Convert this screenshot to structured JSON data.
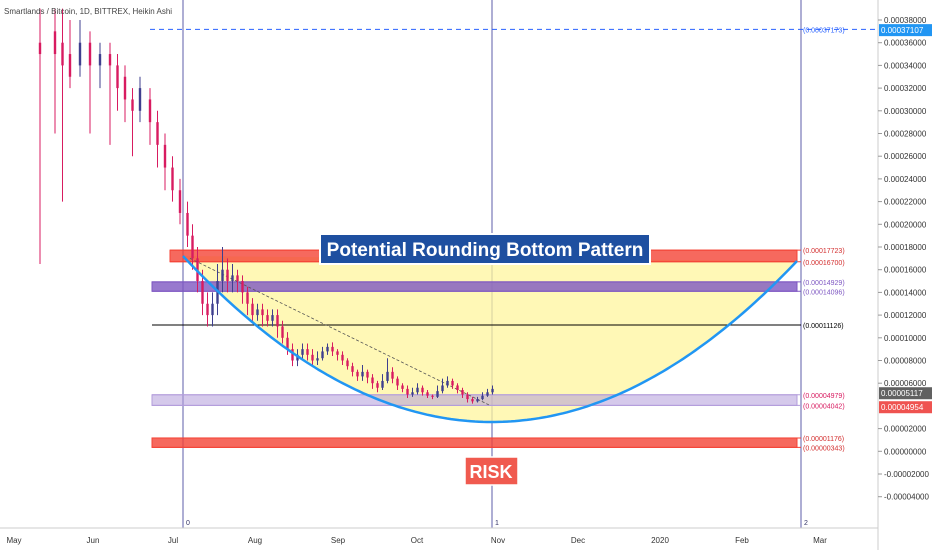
{
  "header": {
    "title": "Smartlands / Bitcoin, 1D, BITTREX, Heikin Ashi"
  },
  "chart_data": {
    "type": "candlestick",
    "title": "Smartlands / Bitcoin, 1D, BITTREX, Heikin Ashi",
    "ylim": [
      -4.6e-05,
      0.00039
    ],
    "y_ticks": [
      {
        "v": 0.00038,
        "label": "0.00038000"
      },
      {
        "v": 0.00036,
        "label": "0.00036000"
      },
      {
        "v": 0.00034,
        "label": "0.00034000"
      },
      {
        "v": 0.00032,
        "label": "0.00032000"
      },
      {
        "v": 0.0003,
        "label": "0.00030000"
      },
      {
        "v": 0.00028,
        "label": "0.00028000"
      },
      {
        "v": 0.00026,
        "label": "0.00026000"
      },
      {
        "v": 0.00024,
        "label": "0.00024000"
      },
      {
        "v": 0.00022,
        "label": "0.00022000"
      },
      {
        "v": 0.0002,
        "label": "0.00020000"
      },
      {
        "v": 0.00018,
        "label": "0.00018000"
      },
      {
        "v": 0.00016,
        "label": "0.00016000"
      },
      {
        "v": 0.00014,
        "label": "0.00014000"
      },
      {
        "v": 0.00012,
        "label": "0.00012000"
      },
      {
        "v": 0.0001,
        "label": "0.00010000"
      },
      {
        "v": 8e-05,
        "label": "0.00008000"
      },
      {
        "v": 6e-05,
        "label": "0.00006000"
      },
      {
        "v": 2e-05,
        "label": "0.00002000"
      },
      {
        "v": 0.0,
        "label": "0.00000000"
      },
      {
        "v": -2e-05,
        "label": "-0.00002000"
      },
      {
        "v": -4e-05,
        "label": "-0.00004000"
      }
    ],
    "x_ticks": [
      "May",
      "Jun",
      "Jul",
      "Aug",
      "Sep",
      "Oct",
      "Nov",
      "Dec",
      "2020",
      "Feb",
      "Mar"
    ],
    "price_badges": [
      {
        "label": "0.00037107",
        "v": 0.00037107,
        "color": "#2196f3"
      },
      {
        "label": "0.00005117",
        "v": 5.117e-05,
        "color": "#616161"
      },
      {
        "label": "0.00004954",
        "v": 4.954e-05,
        "color": "#ef5350"
      }
    ],
    "zones": [
      {
        "name": "resistance-1",
        "top": 0.00017723,
        "bottom": 0.000167,
        "color": "#f44336",
        "labels": [
          "(0.00017723)",
          "(0.00016700)"
        ],
        "label_color": "#d32f2f"
      },
      {
        "name": "resistance-2",
        "top": 0.00014929,
        "bottom": 0.00014096,
        "color": "#7e57c2",
        "labels": [
          "(0.00014929)",
          "(0.00014096)"
        ],
        "label_color": "#7e57c2"
      },
      {
        "name": "support",
        "top": 4.979e-05,
        "bottom": 4.042e-05,
        "color": "#b39ddb",
        "labels": [
          "(0.00004979)",
          "(0.00004042)"
        ],
        "label_color": "#d81b60"
      },
      {
        "name": "risk",
        "top": 1.176e-05,
        "bottom": 3.43e-06,
        "color": "#f44336",
        "labels": [
          "(0.00001176)",
          "(0.00000343)"
        ],
        "label_color": "#d32f2f"
      }
    ],
    "levels": [
      {
        "name": "level-0.00011126",
        "v": 0.00011126,
        "label": "(0.00011126)",
        "color": "#000000"
      },
      {
        "name": "level-0.00037173",
        "v": 0.00037173,
        "label": "(0.00037173)",
        "color": "#2962ff",
        "dashed": true
      }
    ],
    "vertical_markers": [
      "0",
      "1",
      "2"
    ],
    "annotations": [
      {
        "name": "pattern-title",
        "text": "Potential Rounding Bottom Pattern"
      },
      {
        "name": "risk-label",
        "text": "RISK"
      }
    ],
    "series": [
      {
        "name": "heikin-ashi",
        "points": [
          {
            "d": 0,
            "o": 0.00036,
            "c": 0.00035,
            "h": 0.00039,
            "l": 0.000165
          },
          {
            "d": 6,
            "o": 0.00037,
            "c": 0.00035,
            "h": 0.00039,
            "l": 0.00028
          },
          {
            "d": 9,
            "o": 0.00036,
            "c": 0.00034,
            "h": 0.00039,
            "l": 0.00022
          },
          {
            "d": 12,
            "o": 0.00035,
            "c": 0.00033,
            "h": 0.00038,
            "l": 0.00032
          },
          {
            "d": 16,
            "o": 0.00034,
            "c": 0.00036,
            "h": 0.00038,
            "l": 0.00033
          },
          {
            "d": 20,
            "o": 0.00036,
            "c": 0.00034,
            "h": 0.00037,
            "l": 0.00028
          },
          {
            "d": 24,
            "o": 0.00034,
            "c": 0.00035,
            "h": 0.00036,
            "l": 0.00032
          },
          {
            "d": 28,
            "o": 0.00035,
            "c": 0.00034,
            "h": 0.00036,
            "l": 0.00027
          },
          {
            "d": 31,
            "o": 0.00034,
            "c": 0.00032,
            "h": 0.00035,
            "l": 0.0003
          },
          {
            "d": 34,
            "o": 0.00033,
            "c": 0.00031,
            "h": 0.00034,
            "l": 0.00029
          },
          {
            "d": 37,
            "o": 0.00031,
            "c": 0.0003,
            "h": 0.00032,
            "l": 0.00026
          },
          {
            "d": 40,
            "o": 0.0003,
            "c": 0.00032,
            "h": 0.00033,
            "l": 0.00029
          },
          {
            "d": 44,
            "o": 0.00031,
            "c": 0.00029,
            "h": 0.00032,
            "l": 0.00027
          },
          {
            "d": 47,
            "o": 0.00029,
            "c": 0.00027,
            "h": 0.0003,
            "l": 0.00025
          },
          {
            "d": 50,
            "o": 0.00027,
            "c": 0.00025,
            "h": 0.00028,
            "l": 0.00023
          },
          {
            "d": 53,
            "o": 0.00025,
            "c": 0.00023,
            "h": 0.00026,
            "l": 0.00022
          },
          {
            "d": 56,
            "o": 0.00023,
            "c": 0.00021,
            "h": 0.00024,
            "l": 0.0002
          },
          {
            "d": 59,
            "o": 0.00021,
            "c": 0.00019,
            "h": 0.00022,
            "l": 0.00018
          },
          {
            "d": 61,
            "o": 0.00019,
            "c": 0.00017,
            "h": 0.0002,
            "l": 0.00016
          },
          {
            "d": 63,
            "o": 0.00017,
            "c": 0.00015,
            "h": 0.00018,
            "l": 0.00014
          },
          {
            "d": 65,
            "o": 0.00015,
            "c": 0.00013,
            "h": 0.00016,
            "l": 0.00012
          },
          {
            "d": 67,
            "o": 0.00013,
            "c": 0.00012,
            "h": 0.00014,
            "l": 0.00011
          },
          {
            "d": 69,
            "o": 0.00012,
            "c": 0.00013,
            "h": 0.00014,
            "l": 0.00011
          },
          {
            "d": 71,
            "o": 0.00013,
            "c": 0.00015,
            "h": 0.000165,
            "l": 0.00012
          },
          {
            "d": 73,
            "o": 0.00015,
            "c": 0.00016,
            "h": 0.00018,
            "l": 0.00014
          },
          {
            "d": 75,
            "o": 0.00016,
            "c": 0.00015,
            "h": 0.00017,
            "l": 0.00014
          },
          {
            "d": 77,
            "o": 0.00015,
            "c": 0.000155,
            "h": 0.000165,
            "l": 0.00014
          },
          {
            "d": 79,
            "o": 0.000155,
            "c": 0.00015,
            "h": 0.00016,
            "l": 0.00014
          },
          {
            "d": 81,
            "o": 0.00015,
            "c": 0.00014,
            "h": 0.000155,
            "l": 0.00013
          },
          {
            "d": 83,
            "o": 0.00014,
            "c": 0.00013,
            "h": 0.000145,
            "l": 0.00012
          },
          {
            "d": 85,
            "o": 0.00013,
            "c": 0.00012,
            "h": 0.000135,
            "l": 0.000115
          },
          {
            "d": 87,
            "o": 0.00012,
            "c": 0.000125,
            "h": 0.00013,
            "l": 0.000115
          },
          {
            "d": 89,
            "o": 0.000125,
            "c": 0.00012,
            "h": 0.00013,
            "l": 0.00011
          },
          {
            "d": 91,
            "o": 0.00012,
            "c": 0.000115,
            "h": 0.000125,
            "l": 0.00011
          },
          {
            "d": 93,
            "o": 0.000115,
            "c": 0.00012,
            "h": 0.000125,
            "l": 0.00011
          },
          {
            "d": 95,
            "o": 0.00012,
            "c": 0.00011,
            "h": 0.000125,
            "l": 0.0001
          },
          {
            "d": 97,
            "o": 0.00011,
            "c": 0.0001,
            "h": 0.000115,
            "l": 9.5e-05
          },
          {
            "d": 99,
            "o": 0.0001,
            "c": 9e-05,
            "h": 0.000105,
            "l": 8.5e-05
          },
          {
            "d": 101,
            "o": 9e-05,
            "c": 8e-05,
            "h": 9.5e-05,
            "l": 7.5e-05
          },
          {
            "d": 103,
            "o": 8e-05,
            "c": 8.5e-05,
            "h": 9e-05,
            "l": 7.5e-05
          },
          {
            "d": 105,
            "o": 8.5e-05,
            "c": 9e-05,
            "h": 9.5e-05,
            "l": 8e-05
          },
          {
            "d": 107,
            "o": 9e-05,
            "c": 8.5e-05,
            "h": 9.5e-05,
            "l": 8e-05
          },
          {
            "d": 109,
            "o": 8.5e-05,
            "c": 8e-05,
            "h": 9e-05,
            "l": 7.5e-05
          },
          {
            "d": 111,
            "o": 8e-05,
            "c": 8.2e-05,
            "h": 8.8e-05,
            "l": 7.6e-05
          },
          {
            "d": 113,
            "o": 8.2e-05,
            "c": 8.8e-05,
            "h": 9.2e-05,
            "l": 8e-05
          },
          {
            "d": 115,
            "o": 8.8e-05,
            "c": 9.2e-05,
            "h": 9.5e-05,
            "l": 8.5e-05
          },
          {
            "d": 117,
            "o": 9.2e-05,
            "c": 8.8e-05,
            "h": 9.6e-05,
            "l": 8.4e-05
          },
          {
            "d": 119,
            "o": 8.8e-05,
            "c": 8.5e-05,
            "h": 9e-05,
            "l": 8e-05
          },
          {
            "d": 121,
            "o": 8.5e-05,
            "c": 8e-05,
            "h": 8.8e-05,
            "l": 7.6e-05
          },
          {
            "d": 123,
            "o": 8e-05,
            "c": 7.5e-05,
            "h": 8.2e-05,
            "l": 7.2e-05
          },
          {
            "d": 125,
            "o": 7.5e-05,
            "c": 7e-05,
            "h": 7.8e-05,
            "l": 6.6e-05
          },
          {
            "d": 127,
            "o": 7e-05,
            "c": 6.6e-05,
            "h": 7.2e-05,
            "l": 6.2e-05
          },
          {
            "d": 129,
            "o": 6.6e-05,
            "c": 7e-05,
            "h": 7.6e-05,
            "l": 6.2e-05
          },
          {
            "d": 131,
            "o": 7e-05,
            "c": 6.5e-05,
            "h": 7.2e-05,
            "l": 6e-05
          },
          {
            "d": 133,
            "o": 6.5e-05,
            "c": 6e-05,
            "h": 6.8e-05,
            "l": 5.5e-05
          },
          {
            "d": 135,
            "o": 6e-05,
            "c": 5.6e-05,
            "h": 6.2e-05,
            "l": 5.2e-05
          },
          {
            "d": 137,
            "o": 5.6e-05,
            "c": 6.2e-05,
            "h": 6.8e-05,
            "l": 5.4e-05
          },
          {
            "d": 139,
            "o": 6.2e-05,
            "c": 7e-05,
            "h": 8.2e-05,
            "l": 6e-05
          },
          {
            "d": 141,
            "o": 7e-05,
            "c": 6.4e-05,
            "h": 7.4e-05,
            "l": 6e-05
          },
          {
            "d": 143,
            "o": 6.4e-05,
            "c": 5.8e-05,
            "h": 6.6e-05,
            "l": 5.4e-05
          },
          {
            "d": 145,
            "o": 5.8e-05,
            "c": 5.5e-05,
            "h": 6e-05,
            "l": 5.2e-05
          },
          {
            "d": 147,
            "o": 5.5e-05,
            "c": 5e-05,
            "h": 5.8e-05,
            "l": 4.7e-05
          },
          {
            "d": 149,
            "o": 5e-05,
            "c": 5.2e-05,
            "h": 5.6e-05,
            "l": 4.8e-05
          },
          {
            "d": 151,
            "o": 5.2e-05,
            "c": 5.6e-05,
            "h": 6e-05,
            "l": 5e-05
          },
          {
            "d": 153,
            "o": 5.6e-05,
            "c": 5.2e-05,
            "h": 5.8e-05,
            "l": 4.9e-05
          },
          {
            "d": 155,
            "o": 5.2e-05,
            "c": 4.9e-05,
            "h": 5.4e-05,
            "l": 4.7e-05
          },
          {
            "d": 157,
            "o": 4.9e-05,
            "c": 4.8e-05,
            "h": 5e-05,
            "l": 4.6e-05
          },
          {
            "d": 159,
            "o": 4.8e-05,
            "c": 5.3e-05,
            "h": 5.8e-05,
            "l": 4.7e-05
          },
          {
            "d": 161,
            "o": 5.3e-05,
            "c": 5.8e-05,
            "h": 6.4e-05,
            "l": 5.1e-05
          },
          {
            "d": 163,
            "o": 5.8e-05,
            "c": 6.2e-05,
            "h": 6.6e-05,
            "l": 5.6e-05
          },
          {
            "d": 165,
            "o": 6.2e-05,
            "c": 5.8e-05,
            "h": 6.4e-05,
            "l": 5.5e-05
          },
          {
            "d": 167,
            "o": 5.8e-05,
            "c": 5.4e-05,
            "h": 6e-05,
            "l": 5.1e-05
          },
          {
            "d": 169,
            "o": 5.4e-05,
            "c": 5e-05,
            "h": 5.6e-05,
            "l": 4.7e-05
          },
          {
            "d": 171,
            "o": 5e-05,
            "c": 4.6e-05,
            "h": 5.2e-05,
            "l": 4.3e-05
          },
          {
            "d": 173,
            "o": 4.6e-05,
            "c": 4.4e-05,
            "h": 4.8e-05,
            "l": 4.2e-05
          },
          {
            "d": 175,
            "o": 4.4e-05,
            "c": 4.6e-05,
            "h": 4.8e-05,
            "l": 4.3e-05
          },
          {
            "d": 177,
            "o": 4.6e-05,
            "c": 4.9e-05,
            "h": 5.2e-05,
            "l": 4.5e-05
          },
          {
            "d": 179,
            "o": 4.9e-05,
            "c": 5.2e-05,
            "h": 5.5e-05,
            "l": 4.8e-05
          },
          {
            "d": 181,
            "o": 5.2e-05,
            "c": 5.5e-05,
            "h": 5.8e-05,
            "l": 5e-05
          }
        ]
      }
    ]
  }
}
